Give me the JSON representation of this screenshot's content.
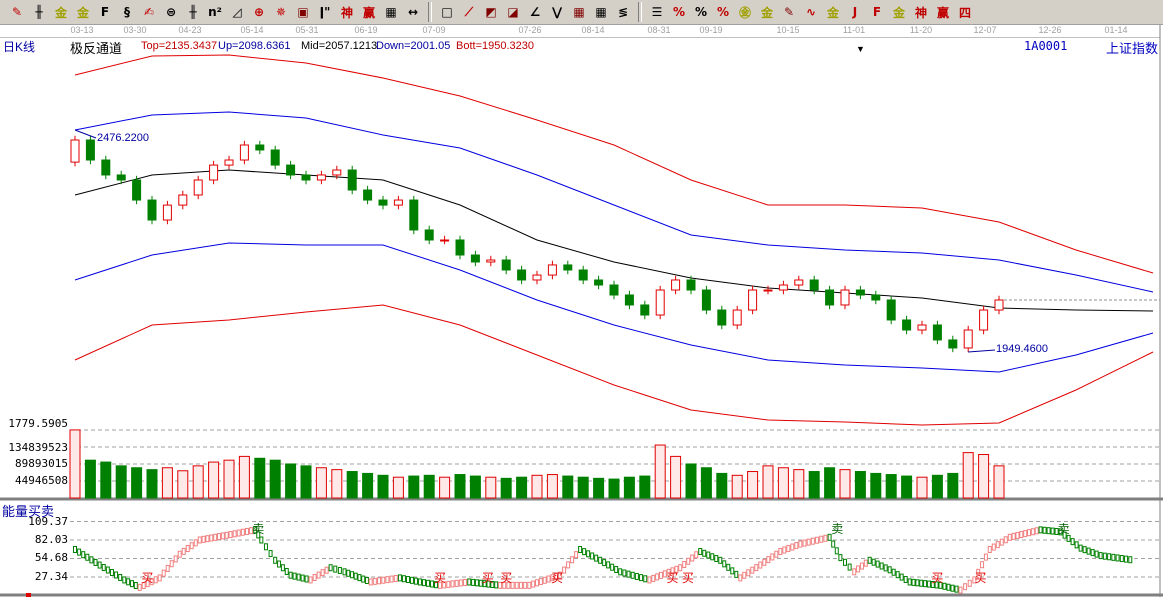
{
  "toolbar": {
    "groups": [
      [
        {
          "name": "pen-draw-icon",
          "glyph": "✎",
          "color": "#c00000"
        },
        {
          "name": "grid-lines-icon",
          "glyph": "╫",
          "color": "#000"
        },
        {
          "name": "gold-ratio-icon",
          "glyph": "金",
          "color": "#a0a000"
        },
        {
          "name": "gold-ratio-2-icon",
          "glyph": "金",
          "color": "#a0a000"
        },
        {
          "name": "f-lines-icon",
          "glyph": "F",
          "color": "#000"
        },
        {
          "name": "spiral-icon",
          "glyph": "§",
          "color": "#000"
        },
        {
          "name": "pen-ruler-icon",
          "glyph": "✍",
          "color": "#c00000"
        },
        {
          "name": "circle-ruler-icon",
          "glyph": "⊜",
          "color": "#000"
        },
        {
          "name": "parallel-lines-icon",
          "glyph": "╫",
          "color": "#000"
        },
        {
          "name": "n-squared-icon",
          "glyph": "n²",
          "color": "#000"
        },
        {
          "name": "triangle-icon",
          "glyph": "◿",
          "color": "#000"
        },
        {
          "name": "target-icon",
          "glyph": "⊕",
          "color": "#c00000"
        },
        {
          "name": "star-target-icon",
          "glyph": "✵",
          "color": "#c00000"
        },
        {
          "name": "square-target-icon",
          "glyph": "▣",
          "color": "#800000"
        },
        {
          "name": "tick-marks-icon",
          "glyph": "ǀ\"",
          "color": "#000"
        },
        {
          "name": "shen-icon",
          "glyph": "神",
          "color": "#c00000"
        },
        {
          "name": "ying-icon",
          "glyph": "赢",
          "color": "#c00000"
        },
        {
          "name": "ruler-123-icon",
          "glyph": "▦",
          "color": "#000"
        },
        {
          "name": "width-arrows-icon",
          "glyph": "↔",
          "color": "#000"
        }
      ],
      [
        {
          "name": "box-icon",
          "glyph": "□",
          "color": "#000"
        },
        {
          "name": "fan-lines-icon",
          "glyph": "⟋",
          "color": "#c00000"
        },
        {
          "name": "fan-box-icon",
          "glyph": "◩",
          "color": "#800000"
        },
        {
          "name": "fan-grid-icon",
          "glyph": "◪",
          "color": "#800000"
        },
        {
          "name": "angle-lines-icon",
          "glyph": "∠",
          "color": "#000"
        },
        {
          "name": "zigzag-icon",
          "glyph": "⋁",
          "color": "#000"
        },
        {
          "name": "grid-box-icon",
          "glyph": "▦",
          "color": "#800000"
        },
        {
          "name": "grid-box-2-icon",
          "glyph": "▦",
          "color": "#000"
        },
        {
          "name": "diagonal-lines-icon",
          "glyph": "≶",
          "color": "#000"
        }
      ],
      [
        {
          "name": "bars-icon",
          "glyph": "☰",
          "color": "#000"
        },
        {
          "name": "percent-angle-icon",
          "glyph": "%",
          "color": "#c00000"
        },
        {
          "name": "percent-icon",
          "glyph": "%",
          "color": "#000"
        },
        {
          "name": "percent-lines-icon",
          "glyph": "%",
          "color": "#c00000"
        },
        {
          "name": "gold-circle-icon",
          "glyph": "㊎",
          "color": "#a0a000"
        },
        {
          "name": "gold-lines-icon",
          "glyph": "金",
          "color": "#a0a000"
        },
        {
          "name": "pen-bar-icon",
          "glyph": "✎",
          "color": "#800000"
        },
        {
          "name": "wave-icon",
          "glyph": "∿",
          "color": "#c00000"
        },
        {
          "name": "gold-box-icon",
          "glyph": "金",
          "color": "#a0a000"
        },
        {
          "name": "j-angle-icon",
          "glyph": "J",
          "color": "#c00000"
        },
        {
          "name": "f-angle-icon",
          "glyph": "F",
          "color": "#c00000"
        },
        {
          "name": "gold-angle-icon",
          "glyph": "金",
          "color": "#a0a000"
        },
        {
          "name": "shen-angle-icon",
          "glyph": "神",
          "color": "#c00000"
        },
        {
          "name": "ying-angle-icon",
          "glyph": "赢",
          "color": "#c00000"
        },
        {
          "name": "four-angle-icon",
          "glyph": "四",
          "color": "#c00000"
        }
      ]
    ]
  },
  "header": {
    "period": "日K线",
    "indicator": "极反通道",
    "top": "Top=2135.3437",
    "up": "Up=2098.6361",
    "mid": "Mid=2057.1213",
    "down": "Down=2001.05",
    "bott": "Bott=1950.3230",
    "symbol": "1A0001",
    "name": "上证指数"
  },
  "colors": {
    "up": "#e00000",
    "down": "#008000",
    "top": "#e00000",
    "upline": "#0000e0",
    "mid": "#000000",
    "downline": "#0000e0",
    "bott": "#e00000",
    "label": "#0000a0"
  },
  "chart_data": [
    {
      "type": "candlestick",
      "title": "极反通道",
      "x_tick_labels": [
        "03-13",
        "03-30",
        "04-23",
        "05-14",
        "05-31",
        "06-19",
        "07-09",
        "07-26",
        "08-14",
        "08-31",
        "09-19",
        "10-15",
        "11-01",
        "11-20",
        "12-07",
        "12-26",
        "01-14"
      ],
      "close": [
        2452.5,
        2405,
        2369.5,
        2357.6,
        2310,
        2262.6,
        2298,
        2322,
        2357.6,
        2393,
        2405,
        2440.6,
        2428.8,
        2393,
        2369.5,
        2357.6,
        2369.5,
        2381.3,
        2333.8,
        2310,
        2298,
        2310,
        2239,
        2215.2,
        2215.2,
        2179.6,
        2163,
        2167.7,
        2144,
        2120.3,
        2132,
        2156,
        2144,
        2120.3,
        2108.4,
        2084.7,
        2061,
        2037.2,
        2096.5,
        2120.3,
        2096.5,
        2049,
        2013.5,
        2049,
        2096.5,
        2096.5,
        2108.4,
        2120.3,
        2096.5,
        2061,
        2096.5,
        2084.7,
        2072.8,
        2025.4,
        2001.6,
        2013.5,
        1978,
        1959,
        2001.6,
        2049,
        2072.8
      ],
      "annotations": [
        {
          "bar": 0,
          "value": 2476.22,
          "text": "2476.2200"
        },
        {
          "bar": 58,
          "value": 1949.46,
          "text": "1949.4600"
        }
      ],
      "last_price_line": 2072.8,
      "channel": {
        "bar_index": [
          0,
          5,
          10,
          15,
          20,
          25,
          30,
          35,
          40,
          45,
          50,
          55,
          60,
          65,
          70
        ],
        "series": [
          {
            "name": "Top",
            "values": [
              2606.7,
              2651.8,
              2654.2,
              2635.2,
              2599.6,
              2556.9,
              2499.9,
              2440.6,
              2357.6,
              2298.2,
              2298.2,
              2291.1,
              2257.9,
              2191.5,
              2136.9
            ]
          },
          {
            "name": "Up",
            "values": [
              2476.2,
              2511.8,
              2518.9,
              2504.7,
              2464.4,
              2433.5,
              2369.4,
              2298.2,
              2227.0,
              2203.3,
              2191.5,
              2184.3,
              2167.7,
              2132.1,
              2091.8
            ]
          },
          {
            "name": "Mid",
            "values": [
              2322.0,
              2369.4,
              2381.3,
              2369.4,
              2357.6,
              2298.2,
              2215.2,
              2163.0,
              2125.0,
              2101.3,
              2089.4,
              2077.6,
              2053.8,
              2049.1,
              2046.7
            ]
          },
          {
            "name": "Down",
            "values": [
              2120.3,
              2179.6,
              2208.1,
              2203.3,
              2203.3,
              2144.0,
              2072.8,
              2013.5,
              1966.0,
              1930.4,
              1918.6,
              1911.4,
              1901.9,
              1942.3,
              1994.5
            ]
          },
          {
            "name": "Bott",
            "values": [
              1930.4,
              2013.5,
              2025.4,
              2044.3,
              2060.9,
              2013.5,
              1942.3,
              1871.1,
              1811.8,
              1788.0,
              1783.3,
              1776.2,
              1780.9,
              1859.2,
              1949.4
            ]
          }
        ]
      },
      "ylim": [
        1776,
        2660
      ]
    },
    {
      "type": "bar",
      "title": "volume",
      "top_label": "1779.5905",
      "y_ticks": [
        "134839523",
        "89893015",
        "44946508"
      ],
      "y_tick_values": [
        134839523,
        89893015,
        44946508
      ],
      "values": [
        180000000,
        100000000,
        95000000,
        85000000,
        80000000,
        75000000,
        80000000,
        72000000,
        85000000,
        95000000,
        100000000,
        110000000,
        105000000,
        100000000,
        90000000,
        85000000,
        80000000,
        75000000,
        70000000,
        65000000,
        60000000,
        55000000,
        58000000,
        60000000,
        55000000,
        62000000,
        58000000,
        55000000,
        52000000,
        55000000,
        60000000,
        62000000,
        58000000,
        55000000,
        52000000,
        50000000,
        55000000,
        58000000,
        140000000,
        110000000,
        90000000,
        80000000,
        65000000,
        60000000,
        70000000,
        85000000,
        80000000,
        75000000,
        70000000,
        80000000,
        75000000,
        70000000,
        65000000,
        62000000,
        58000000,
        55000000,
        60000000,
        65000000,
        120000000,
        115000000,
        85000000
      ]
    },
    {
      "type": "line",
      "title": "能量买卖",
      "y_ticks": [
        "109.37",
        "82.03",
        "54.68",
        "27.34"
      ],
      "y_tick_values": [
        109.37,
        82.03,
        54.68,
        27.34
      ],
      "x_bar": [
        0,
        1.6,
        3.2,
        4.2,
        5.5,
        6.8,
        8.1,
        10.1,
        11.7,
        12.1,
        13,
        14,
        15.3,
        16.6,
        17.5,
        19.2,
        21.1,
        22.4,
        23.7,
        25.6,
        27.6,
        29.5,
        31.5,
        32.8,
        34.1,
        35.4,
        37.3,
        39.3,
        40.6,
        41.9,
        43.2,
        44.5,
        45.8,
        47.1,
        49,
        49.7,
        50.6,
        51.6,
        52.9,
        54.2,
        56.2,
        57.5,
        58.4,
        59.4,
        60.7,
        62.7,
        64,
        65.3,
        66.6,
        68.8
      ],
      "values": [
        68,
        45,
        23,
        12,
        26,
        61,
        82,
        90,
        97,
        82,
        52,
        30,
        23,
        41,
        35,
        20,
        26,
        20,
        15,
        20,
        15,
        15,
        30,
        68,
        52,
        35,
        23,
        41,
        65,
        52,
        26,
        45,
        65,
        76,
        86,
        56,
        35,
        52,
        38,
        20,
        15,
        8,
        23,
        68,
        86,
        97,
        94,
        70,
        59,
        52
      ],
      "signals": [
        {
          "bar": 4.7,
          "text": "买"
        },
        {
          "bar": 11.9,
          "text": "卖"
        },
        {
          "bar": 23.7,
          "text": "买"
        },
        {
          "bar": 26.8,
          "text": "买"
        },
        {
          "bar": 28,
          "text": "买"
        },
        {
          "bar": 31.3,
          "text": "买"
        },
        {
          "bar": 38.8,
          "text": "买"
        },
        {
          "bar": 39.8,
          "text": "买"
        },
        {
          "bar": 49.5,
          "text": "卖"
        },
        {
          "bar": 56,
          "text": "买"
        },
        {
          "bar": 58.8,
          "text": "买"
        },
        {
          "bar": 64.2,
          "text": "卖"
        }
      ]
    }
  ]
}
